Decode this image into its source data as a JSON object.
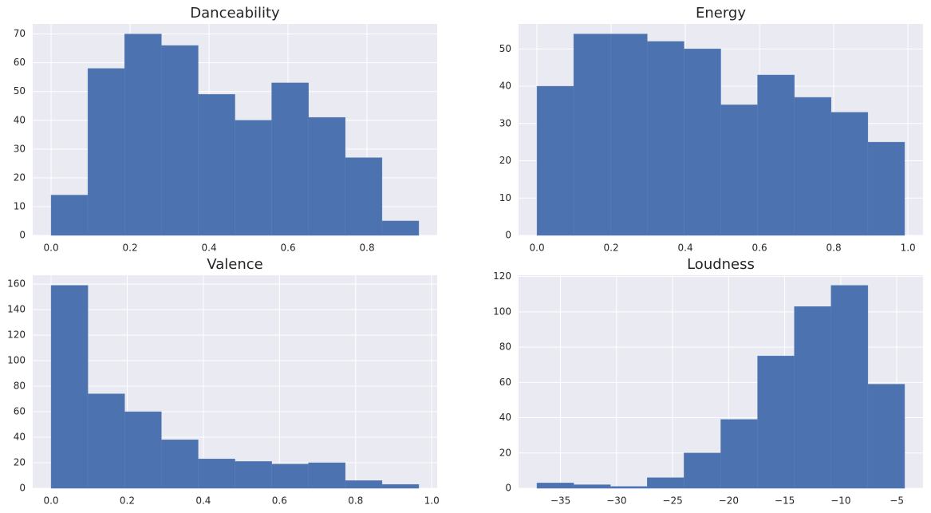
{
  "chart_data": [
    {
      "type": "histogram",
      "title": "Danceability",
      "color": "#4c72b0",
      "grid": true,
      "bins": [
        0,
        0.0931,
        0.1862,
        0.2793,
        0.3724,
        0.4655,
        0.5586,
        0.6517,
        0.7448,
        0.8379,
        0.931
      ],
      "values": [
        14,
        58,
        70,
        66,
        49,
        40,
        53,
        41,
        27,
        5
      ],
      "xlim": [
        -0.0466,
        0.9776
      ],
      "xticks": [
        {
          "value": 0,
          "label": "0.0"
        },
        0.2,
        0.4,
        0.6,
        0.8
      ],
      "ylim": [
        0,
        73.5
      ],
      "yticks": [
        0,
        10,
        20,
        30,
        40,
        50,
        60,
        70
      ]
    },
    {
      "type": "histogram",
      "title": "Energy",
      "color": "#4c72b0",
      "grid": true,
      "bins": [
        0,
        0.0991,
        0.1982,
        0.2973,
        0.3964,
        0.4955,
        0.5946,
        0.6937,
        0.7928,
        0.8919,
        0.991
      ],
      "values": [
        40,
        54,
        54,
        52,
        50,
        35,
        43,
        37,
        33,
        25
      ],
      "xlim": [
        -0.0496,
        1.0406
      ],
      "xticks": [
        {
          "value": 0,
          "label": "0.0"
        },
        0.2,
        0.4,
        0.6,
        0.8,
        {
          "value": 1,
          "label": "1.0"
        }
      ],
      "ylim": [
        0,
        56.7
      ],
      "yticks": [
        0,
        10,
        20,
        30,
        40,
        50
      ]
    },
    {
      "type": "histogram",
      "title": "Valence",
      "color": "#4c72b0",
      "grid": true,
      "bins": [
        0,
        0.0966,
        0.1932,
        0.2898,
        0.3864,
        0.483,
        0.5796,
        0.6762,
        0.7728,
        0.8694,
        0.966
      ],
      "values": [
        159,
        74,
        60,
        38,
        23,
        21,
        19,
        20,
        6,
        3
      ],
      "xlim": [
        -0.0483,
        1.0143
      ],
      "xticks": [
        {
          "value": 0,
          "label": "0.0"
        },
        0.2,
        0.4,
        0.6,
        0.8,
        {
          "value": 1,
          "label": "1.0"
        }
      ],
      "ylim": [
        0,
        166.95
      ],
      "yticks": [
        0,
        20,
        40,
        60,
        80,
        100,
        120,
        140,
        160
      ]
    },
    {
      "type": "histogram",
      "title": "Loudness",
      "color": "#4c72b0",
      "grid": true,
      "bins": [
        -37.1,
        -33.82,
        -30.54,
        -27.26,
        -23.98,
        -20.7,
        -17.42,
        -14.14,
        -10.86,
        -7.58,
        -4.3
      ],
      "values": [
        3,
        2,
        1,
        6,
        20,
        39,
        75,
        103,
        115,
        59
      ],
      "xlim": [
        -38.74,
        -2.66
      ],
      "xticks": [
        {
          "value": -35,
          "label": "−35"
        },
        {
          "value": -30,
          "label": "−30"
        },
        {
          "value": -25,
          "label": "−25"
        },
        {
          "value": -20,
          "label": "−20"
        },
        {
          "value": -15,
          "label": "−15"
        },
        {
          "value": -10,
          "label": "−10"
        },
        {
          "value": -5,
          "label": "−5"
        }
      ],
      "ylim": [
        0,
        120.75
      ],
      "yticks": [
        0,
        20,
        40,
        60,
        80,
        100,
        120
      ]
    }
  ]
}
